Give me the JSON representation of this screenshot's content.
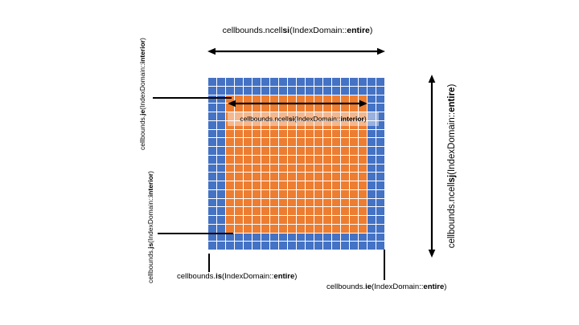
{
  "labels": {
    "ncellsi_entire": {
      "pre": "cellbounds.ncell",
      "key": "si",
      "mid": "(IndexDomain::",
      "domain": "entire",
      "post": ")"
    },
    "ncellsj_entire": {
      "pre": "cellbounds.ncell",
      "key": "sj",
      "mid": "(IndexDomain::",
      "domain": "entire",
      "post": ")"
    },
    "ncellsi_interior": {
      "pre": "cellbounds.ncell",
      "key": "si",
      "mid": "(IndexDomain::",
      "domain": "interior",
      "post": ")"
    },
    "je_interior": {
      "pre": "cellbounds.",
      "key": "je",
      "mid": "(IndexDomain::",
      "domain": "interior",
      "post": ")"
    },
    "js_interior": {
      "pre": "cellbounds.",
      "key": "js",
      "mid": "(IndexDomain::",
      "domain": "interior",
      "post": ")"
    },
    "is_entire": {
      "pre": "cellbounds.",
      "key": "is",
      "mid": "(IndexDomain::",
      "domain": "entire",
      "post": ")"
    },
    "ie_entire": {
      "pre": "cellbounds.",
      "key": "ie",
      "mid": "(IndexDomain::",
      "domain": "entire",
      "post": ")"
    }
  },
  "grid": {
    "cols": 20,
    "rows": 20,
    "halo_width_cells": 2,
    "halo_color": "#4472C4",
    "interior_color": "#ED7D31",
    "gridline_color": "#FFFFFF",
    "arrow_color": "#000000"
  }
}
